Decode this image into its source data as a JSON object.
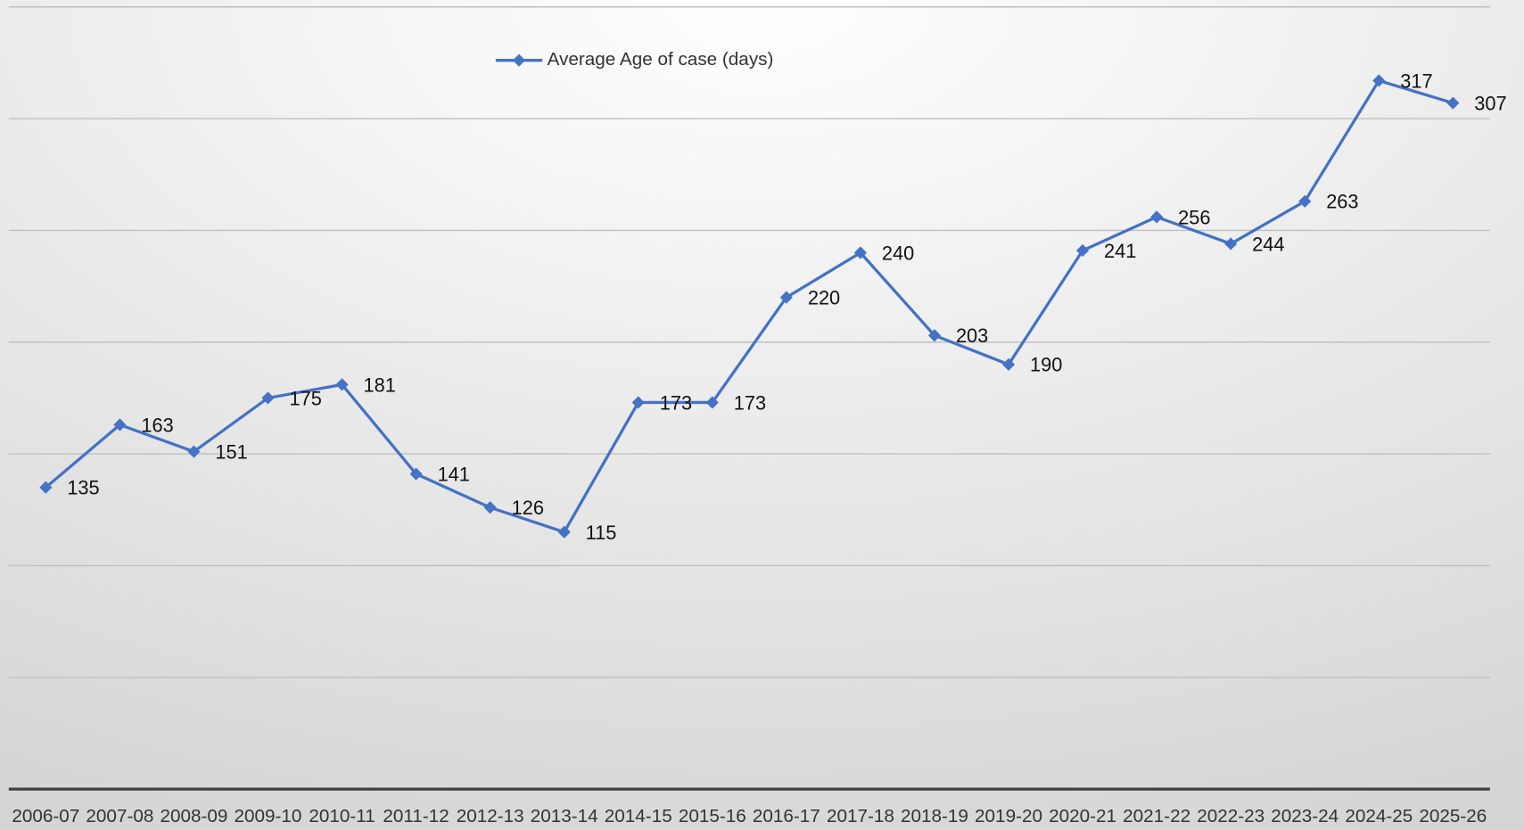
{
  "chart_data": {
    "type": "line",
    "categories": [
      "2006-07",
      "2007-08",
      "2008-09",
      "2009-10",
      "2010-11",
      "2011-12",
      "2012-13",
      "2013-14",
      "2014-15",
      "2015-16",
      "2016-17",
      "2017-18",
      "2018-19",
      "2019-20",
      "2020-21",
      "2021-22",
      "2022-23",
      "2023-24",
      "2024-25",
      "2025-26"
    ],
    "series": [
      {
        "name": "Average Age of case (days)",
        "color": "#4472c4",
        "values": [
          135,
          163,
          151,
          175,
          181,
          141,
          126,
          115,
          173,
          173,
          220,
          240,
          203,
          190,
          241,
          256,
          244,
          263,
          317,
          307
        ]
      }
    ],
    "ylim": [
      0,
      350
    ],
    "yticks": [
      0,
      50,
      100,
      150,
      200,
      250,
      300,
      350
    ],
    "grid": true,
    "legend": "top"
  }
}
